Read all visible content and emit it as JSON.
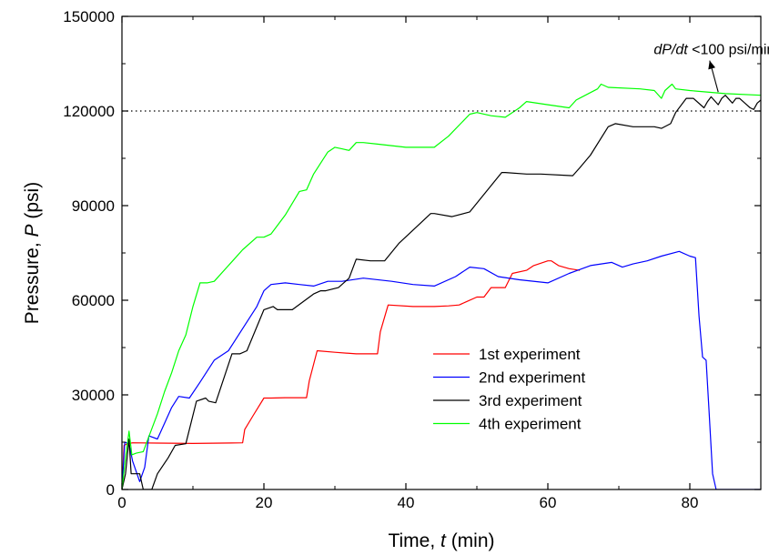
{
  "chart_data": {
    "type": "line",
    "title": "",
    "xlabel": {
      "prefix": "Time, ",
      "symbol": "t",
      "unit": " (min)"
    },
    "ylabel": {
      "prefix": "Pressure, ",
      "symbol": "P",
      "unit": " (psi)"
    },
    "xlim": [
      0,
      90
    ],
    "ylim": [
      0,
      150000
    ],
    "xticks": [
      0,
      20,
      40,
      60,
      80
    ],
    "yticks": [
      0,
      30000,
      60000,
      90000,
      120000,
      150000
    ],
    "grid": false,
    "legend": "center-right",
    "reference_line": {
      "y": 120000,
      "style": "dotted",
      "color": "#000000"
    },
    "annotation": {
      "text_italic": "dP/dt",
      "text_rest": " <100 psi/min",
      "x": 86,
      "y": 140000,
      "arrow_to": [
        84,
        126000
      ]
    },
    "series": [
      {
        "name": "1st experiment",
        "color": "#ff0000",
        "x": [
          0,
          0.3,
          0.8,
          1.5,
          5,
          10,
          17,
          17.3,
          18.5,
          20,
          21,
          23,
          26,
          26.4,
          27.5,
          30,
          33,
          36,
          36.4,
          37.5,
          41,
          44,
          46,
          47.5,
          48.5,
          50,
          51,
          52,
          54,
          55,
          57,
          58,
          60,
          60.5,
          61.5,
          63,
          64.5
        ],
        "y": [
          0,
          14000,
          14500,
          14800,
          14700,
          14600,
          14800,
          19000,
          23500,
          29000,
          29000,
          29100,
          29100,
          34500,
          44000,
          43500,
          43000,
          43000,
          50000,
          58500,
          58000,
          58000,
          58200,
          58500,
          59500,
          61000,
          61000,
          64000,
          64000,
          68500,
          69500,
          71000,
          72500,
          72500,
          71000,
          70000,
          69500
        ]
      },
      {
        "name": "2nd experiment",
        "color": "#0000ff",
        "x": [
          0,
          0.4,
          1,
          1.5,
          2.5,
          3.2,
          3.8,
          5,
          6,
          7,
          8,
          9.5,
          11,
          13,
          15,
          17,
          19,
          20,
          21,
          23,
          25,
          27,
          29,
          31,
          34,
          38,
          41,
          44,
          47,
          49,
          51,
          53,
          56,
          60,
          63,
          66,
          69,
          70.5,
          72,
          74,
          76,
          78.5,
          80,
          80.8,
          81.3,
          81.8,
          82.3,
          82.7,
          83.2,
          83.7,
          84.5,
          90
        ],
        "y": [
          0,
          15000,
          14500,
          9000,
          2500,
          7000,
          17000,
          16000,
          21000,
          26000,
          29500,
          29000,
          34000,
          41000,
          44000,
          51000,
          58000,
          63000,
          65000,
          65500,
          65000,
          64500,
          66000,
          66000,
          67000,
          66000,
          65000,
          64500,
          67500,
          70500,
          70000,
          67500,
          66500,
          65500,
          68500,
          71000,
          72000,
          70500,
          71500,
          72500,
          74000,
          75500,
          74000,
          73500,
          55000,
          42000,
          41000,
          25000,
          5000,
          0,
          0,
          0
        ]
      },
      {
        "name": "3rd experiment",
        "color": "#000000",
        "x": [
          0,
          0.5,
          1,
          1.3,
          2.5,
          3,
          4.2,
          5,
          6.5,
          7.5,
          9,
          10.5,
          11.8,
          12.2,
          13.2,
          15.5,
          16.6,
          17.6,
          20,
          21.3,
          21.9,
          22.9,
          24,
          27,
          28,
          28.7,
          30.5,
          32,
          33,
          35,
          37,
          39,
          43.5,
          44,
          46.5,
          49,
          53.5,
          54,
          57,
          59,
          63.5,
          64.5,
          66,
          68.5,
          69.5,
          72,
          75,
          76,
          77.3,
          78,
          79.5,
          80.5,
          82,
          82.5,
          83,
          84,
          84.5,
          85,
          86,
          86.5,
          87,
          88,
          88.5,
          89,
          89.5,
          90
        ],
        "y": [
          0,
          5000,
          16000,
          5000,
          5000,
          0,
          0,
          5000,
          10000,
          14000,
          14500,
          28000,
          29000,
          28000,
          27500,
          43000,
          43000,
          44000,
          57000,
          58000,
          57000,
          57000,
          57000,
          62000,
          63000,
          63000,
          64000,
          67000,
          73000,
          72500,
          72500,
          78000,
          87500,
          87500,
          86500,
          88000,
          100500,
          100500,
          100000,
          100000,
          99500,
          102000,
          106000,
          115000,
          116000,
          115000,
          115000,
          114500,
          116000,
          119500,
          124000,
          124000,
          121000,
          123000,
          124500,
          122000,
          124000,
          125000,
          122500,
          124000,
          124000,
          122000,
          121000,
          120500,
          122500,
          123500
        ]
      },
      {
        "name": "4th experiment",
        "color": "#00ff00",
        "x": [
          0,
          0.5,
          1,
          1.4,
          2,
          3,
          4,
          5,
          6,
          7,
          8,
          9,
          10,
          11,
          12,
          13,
          15,
          17,
          19,
          20,
          21,
          23,
          25,
          26,
          27,
          29,
          30,
          31,
          32,
          33,
          34,
          36,
          40,
          44,
          46,
          49,
          50,
          52,
          54,
          56,
          57,
          60,
          63,
          64,
          67,
          67.5,
          68.5,
          73,
          75,
          76,
          76.5,
          77.5,
          78,
          80,
          85,
          90
        ],
        "y": [
          0,
          10000,
          18500,
          11000,
          11500,
          12000,
          18000,
          24000,
          31000,
          37000,
          44000,
          49000,
          58000,
          65500,
          65500,
          66000,
          71000,
          76000,
          80000,
          80000,
          81000,
          87000,
          94500,
          95000,
          100000,
          107000,
          108500,
          108000,
          107500,
          110000,
          110000,
          109500,
          108500,
          108500,
          112000,
          119000,
          119500,
          118500,
          118000,
          121000,
          123000,
          122000,
          121000,
          123500,
          127000,
          128500,
          127500,
          127000,
          126500,
          124000,
          126500,
          128500,
          127000,
          126500,
          125500,
          125000
        ]
      }
    ]
  }
}
